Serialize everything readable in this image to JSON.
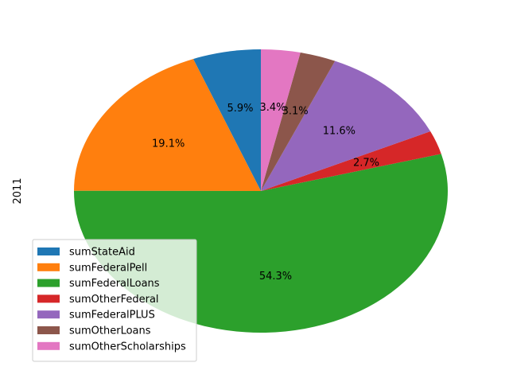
{
  "chart_data": {
    "type": "pie",
    "ylabel": "2011",
    "labels": [
      "sumStateAid",
      "sumFederalPell",
      "sumFederalLoans",
      "sumOtherFederal",
      "sumFederalPLUS",
      "sumOtherLoans",
      "sumOtherScholarships"
    ],
    "values": [
      5.9,
      19.1,
      54.3,
      2.7,
      11.6,
      3.1,
      3.4
    ],
    "value_labels": [
      "5.9%",
      "19.1%",
      "54.3%",
      "2.7%",
      "11.6%",
      "3.1%",
      "3.4%"
    ],
    "colors": [
      "#1f77b4",
      "#ff7f0e",
      "#2ca02c",
      "#d62728",
      "#9467bd",
      "#8c564b",
      "#e377c2"
    ],
    "start_angle_deg": 90,
    "direction": "counterclockwise",
    "legend": "lower-left"
  }
}
